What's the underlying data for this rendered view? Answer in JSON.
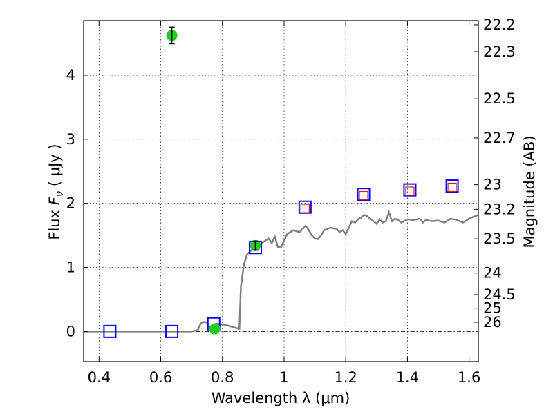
{
  "chart_data": {
    "type": "scatter",
    "xlabel": "Wavelength  λ (μm)",
    "ylabel_left_prefix": "Flux  ",
    "ylabel_left_symbol": "F",
    "ylabel_left_sub": "ν",
    "ylabel_left_suffix": "  ( μJy )",
    "ylabel_right": "Magnitude (AB)",
    "xlim": [
      0.35,
      1.63
    ],
    "ylim": [
      -0.47,
      4.85
    ],
    "x_ticks": [
      {
        "value": 0.4,
        "label": "0.4"
      },
      {
        "value": 0.6,
        "label": "0.6"
      },
      {
        "value": 0.8,
        "label": "0.8"
      },
      {
        "value": 1.0,
        "label": "1"
      },
      {
        "value": 1.2,
        "label": "1.2"
      },
      {
        "value": 1.4,
        "label": "1.4"
      },
      {
        "value": 1.6,
        "label": "1.6"
      }
    ],
    "y_ticks": [
      {
        "value": 0,
        "label": "0"
      },
      {
        "value": 1,
        "label": "1"
      },
      {
        "value": 2,
        "label": "2"
      },
      {
        "value": 3,
        "label": "3"
      },
      {
        "value": 4,
        "label": "4"
      }
    ],
    "right_ticks": [
      {
        "label": "22.2"
      },
      {
        "label": "22.3"
      },
      {
        "label": "22.5"
      },
      {
        "label": "22.7"
      },
      {
        "label": "23"
      },
      {
        "label": "23.2"
      },
      {
        "label": "23.5"
      },
      {
        "label": "24"
      },
      {
        "label": "24.5"
      },
      {
        "label": "25"
      },
      {
        "label": "26"
      }
    ],
    "grid": true,
    "zero_line": true,
    "series": [
      {
        "kind": "line",
        "color": "#808080",
        "points": [
          [
            0.35,
            0.0
          ],
          [
            0.7,
            0.0
          ],
          [
            0.72,
            0.02
          ],
          [
            0.73,
            0.13
          ],
          [
            0.74,
            0.15
          ],
          [
            0.75,
            0.14
          ],
          [
            0.76,
            0.05
          ],
          [
            0.77,
            0.1
          ],
          [
            0.78,
            0.12
          ],
          [
            0.8,
            0.11
          ],
          [
            0.82,
            0.09
          ],
          [
            0.84,
            0.06
          ],
          [
            0.855,
            0.04
          ],
          [
            0.86,
            0.7
          ],
          [
            0.87,
            1.05
          ],
          [
            0.88,
            1.2
          ],
          [
            0.9,
            1.3
          ],
          [
            0.92,
            1.35
          ],
          [
            0.94,
            1.42
          ],
          [
            0.95,
            1.45
          ],
          [
            0.96,
            1.38
          ],
          [
            0.97,
            1.48
          ],
          [
            0.98,
            1.32
          ],
          [
            0.99,
            1.31
          ],
          [
            1.0,
            1.42
          ],
          [
            1.01,
            1.52
          ],
          [
            1.03,
            1.58
          ],
          [
            1.05,
            1.55
          ],
          [
            1.06,
            1.6
          ],
          [
            1.07,
            1.65
          ],
          [
            1.08,
            1.58
          ],
          [
            1.09,
            1.5
          ],
          [
            1.1,
            1.45
          ],
          [
            1.11,
            1.44
          ],
          [
            1.12,
            1.5
          ],
          [
            1.13,
            1.58
          ],
          [
            1.15,
            1.62
          ],
          [
            1.17,
            1.6
          ],
          [
            1.18,
            1.55
          ],
          [
            1.19,
            1.58
          ],
          [
            1.2,
            1.52
          ],
          [
            1.21,
            1.62
          ],
          [
            1.22,
            1.72
          ],
          [
            1.23,
            1.7
          ],
          [
            1.24,
            1.75
          ],
          [
            1.25,
            1.78
          ],
          [
            1.26,
            1.82
          ],
          [
            1.27,
            1.8
          ],
          [
            1.28,
            1.75
          ],
          [
            1.29,
            1.72
          ],
          [
            1.3,
            1.68
          ],
          [
            1.31,
            1.75
          ],
          [
            1.32,
            1.7
          ],
          [
            1.33,
            1.72
          ],
          [
            1.34,
            1.86
          ],
          [
            1.35,
            1.72
          ],
          [
            1.36,
            1.76
          ],
          [
            1.37,
            1.74
          ],
          [
            1.38,
            1.7
          ],
          [
            1.4,
            1.75
          ],
          [
            1.42,
            1.74
          ],
          [
            1.44,
            1.76
          ],
          [
            1.45,
            1.7
          ],
          [
            1.46,
            1.74
          ],
          [
            1.48,
            1.72
          ],
          [
            1.5,
            1.73
          ],
          [
            1.52,
            1.7
          ],
          [
            1.54,
            1.76
          ],
          [
            1.56,
            1.74
          ],
          [
            1.58,
            1.7
          ],
          [
            1.6,
            1.76
          ],
          [
            1.62,
            1.8
          ],
          [
            1.63,
            1.82
          ]
        ]
      },
      {
        "kind": "green-points",
        "color": "#22cc22",
        "points": [
          {
            "x": 0.636,
            "y": 4.62,
            "err": 0.13
          },
          {
            "x": 0.775,
            "y": 0.04,
            "err": 0.0
          },
          {
            "x": 0.907,
            "y": 1.34,
            "err": 0.07
          }
        ]
      },
      {
        "kind": "blue-squares",
        "color": "#0000ff",
        "points": [
          {
            "x": 0.435,
            "y": 0.0
          },
          {
            "x": 0.636,
            "y": 0.0
          },
          {
            "x": 0.772,
            "y": 0.12
          },
          {
            "x": 0.907,
            "y": 1.31
          },
          {
            "x": 1.068,
            "y": 1.94
          },
          {
            "x": 1.258,
            "y": 2.14
          },
          {
            "x": 1.408,
            "y": 2.21
          },
          {
            "x": 1.545,
            "y": 2.27
          }
        ]
      },
      {
        "kind": "red-squares",
        "color": "#cc2222",
        "points": [
          {
            "x": 1.068,
            "y": 1.92
          },
          {
            "x": 1.258,
            "y": 2.12
          },
          {
            "x": 1.408,
            "y": 2.19
          },
          {
            "x": 1.545,
            "y": 2.25
          }
        ]
      }
    ]
  }
}
